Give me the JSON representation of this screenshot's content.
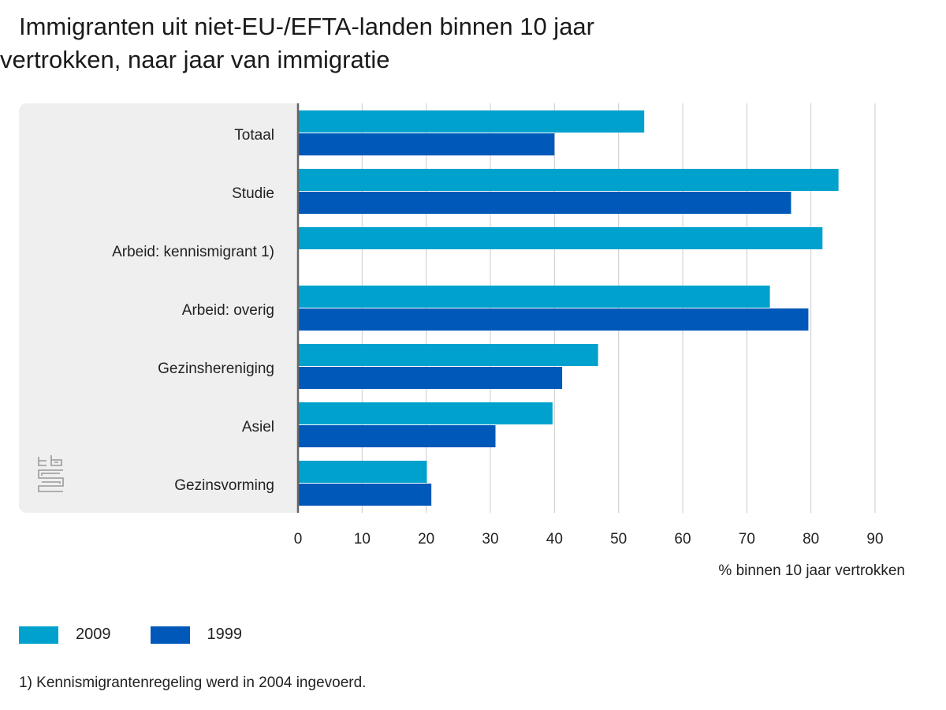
{
  "chart_data": {
    "type": "bar",
    "orientation": "horizontal",
    "title_line1": "Immigranten uit niet-EU-/EFTA-landen binnen 10 jaar",
    "title_line2": "vertrokken, naar jaar van immigratie",
    "xlabel": "% binnen 10 jaar vertrokken",
    "xlim": [
      0,
      90
    ],
    "xticks": [
      "0",
      "10",
      "20",
      "30",
      "40",
      "50",
      "60",
      "70",
      "80",
      "90"
    ],
    "grid": true,
    "categories": [
      "Totaal",
      "Studie",
      "Arbeid: kennismigrant 1)",
      "Arbeid: overig",
      "Gezinshereniging",
      "Asiel",
      "Gezinsvorming"
    ],
    "series": [
      {
        "name": "2009",
        "color": "#00a1cd",
        "values": [
          54,
          84.3,
          81.8,
          73.6,
          46.8,
          39.7,
          20.1
        ]
      },
      {
        "name": "1999",
        "color": "#0058b8",
        "values": [
          40,
          76.9,
          null,
          79.6,
          41.2,
          30.8,
          20.8
        ]
      }
    ],
    "legend_position": "bottom-left",
    "footnote": "1) Kennismigrantenregeling werd in 2004 ingevoerd."
  },
  "logo": {
    "icon": "cbs-logo-icon"
  }
}
